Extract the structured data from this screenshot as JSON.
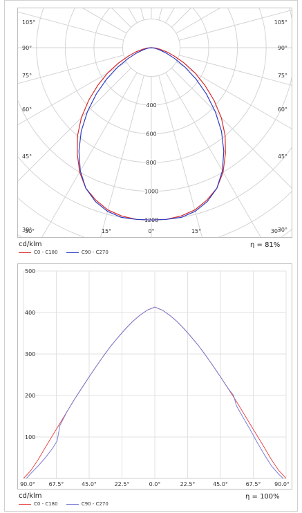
{
  "chart_data": [
    {
      "type": "polar",
      "unit": "cd/klm",
      "efficiency": "η = 81%",
      "radial_ticks": [
        400,
        600,
        800,
        1000,
        1200
      ],
      "radial_max": 1300,
      "angle_labels_left": [
        "105°",
        "90°",
        "75°",
        "60°",
        "45°",
        "30°"
      ],
      "angle_labels_right": [
        "105°",
        "90°",
        "75°",
        "60°",
        "45°",
        "30°"
      ],
      "bottom_labels": [
        "30°",
        "15°",
        "0°",
        "15°",
        "30°"
      ],
      "series": [
        {
          "name": "C0 - C180",
          "color": "#d62a2a",
          "angles": [
            0,
            5,
            10,
            15,
            20,
            25,
            30,
            35,
            40,
            45,
            50,
            55,
            60,
            65,
            70,
            75,
            80,
            85,
            90
          ],
          "values": [
            1200,
            1200,
            1190,
            1170,
            1130,
            1080,
            1000,
            900,
            800,
            690,
            570,
            455,
            350,
            250,
            170,
            110,
            60,
            30,
            0
          ]
        },
        {
          "name": "C90 - C270",
          "color": "#2f3dc4",
          "angles": [
            0,
            5,
            10,
            15,
            20,
            25,
            30,
            35,
            40,
            45,
            50,
            55,
            60,
            65,
            70,
            75,
            80,
            85,
            90
          ],
          "values": [
            1200,
            1200,
            1200,
            1180,
            1140,
            1080,
            990,
            880,
            760,
            630,
            500,
            380,
            270,
            180,
            110,
            60,
            30,
            10,
            0
          ]
        }
      ]
    },
    {
      "type": "line",
      "unit": "cd/klm",
      "efficiency": "η = 100%",
      "x_tick_labels": [
        "90.0°",
        "67.5°",
        "45.0°",
        "22.5°",
        "0.0°",
        "22.5°",
        "45.0°",
        "67.5°",
        "90.0°"
      ],
      "x_tick_positions": [
        -90,
        -67.5,
        -45,
        -22.5,
        0,
        22.5,
        45,
        67.5,
        90
      ],
      "xlim": [
        -90,
        90
      ],
      "ylim": [
        0,
        500
      ],
      "y_ticks": [
        100,
        200,
        300,
        400,
        500
      ],
      "series": [
        {
          "name": "C0 - C180",
          "color": "#e84a4a",
          "x": [
            -90,
            -85,
            -80,
            -75,
            -70,
            -65,
            -60,
            -55,
            -50,
            -45,
            -40,
            -35,
            -30,
            -25,
            -20,
            -15,
            -10,
            -5,
            0,
            5,
            10,
            15,
            20,
            25,
            30,
            35,
            40,
            45,
            50,
            55,
            60,
            65,
            70,
            75,
            80,
            85,
            90
          ],
          "y": [
            0,
            19,
            45,
            75,
            104,
            133,
            162,
            191,
            218,
            245,
            271,
            296,
            320,
            341,
            361,
            379,
            394,
            406,
            413,
            406,
            394,
            379,
            361,
            341,
            320,
            296,
            271,
            245,
            218,
            191,
            162,
            133,
            104,
            75,
            45,
            19,
            0
          ]
        },
        {
          "name": "C90 - C270",
          "color": "#7b7fd6",
          "x": [
            -88,
            -85,
            -80,
            -75,
            -70,
            -67,
            -65,
            -60,
            -55,
            -50,
            -45,
            -40,
            -35,
            -30,
            -25,
            -20,
            -15,
            -10,
            -5,
            0,
            5,
            10,
            15,
            20,
            25,
            30,
            35,
            40,
            45,
            50,
            54,
            56,
            60,
            65,
            70,
            75,
            80,
            85,
            88
          ],
          "y": [
            0,
            12,
            30,
            50,
            73,
            90,
            128,
            162,
            191,
            218,
            245,
            271,
            296,
            320,
            341,
            361,
            379,
            394,
            406,
            413,
            406,
            394,
            379,
            361,
            341,
            320,
            296,
            271,
            245,
            218,
            200,
            175,
            150,
            120,
            88,
            58,
            30,
            10,
            0
          ]
        }
      ]
    }
  ]
}
